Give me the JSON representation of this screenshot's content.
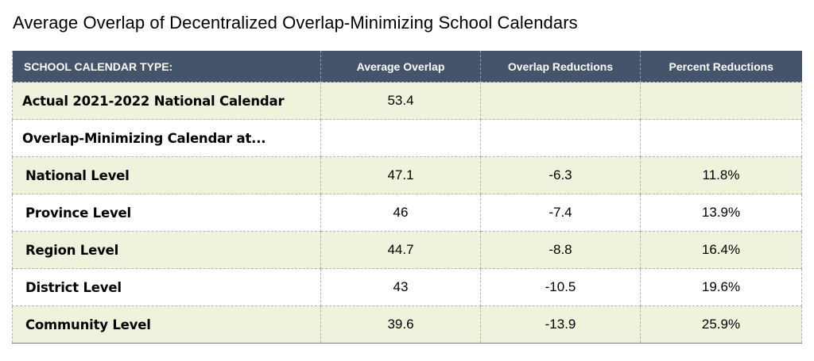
{
  "title": "Average Overlap of Decentralized Overlap-Minimizing School Calendars",
  "chart_data": {
    "type": "table",
    "title": "Average Overlap of Decentralized Overlap-Minimizing School Calendars",
    "columns": [
      "SCHOOL CALENDAR TYPE:",
      "Average Overlap",
      "Overlap Reductions",
      "Percent Reductions"
    ],
    "rows": [
      [
        "Actual 2021-2022 National Calendar",
        "53.4",
        "",
        ""
      ],
      [
        "Overlap-Minimizing Calendar at...",
        "",
        "",
        ""
      ],
      [
        "National Level",
        "47.1",
        "-6.3",
        "11.8%"
      ],
      [
        "Province Level",
        "46",
        "-7.4",
        "13.9%"
      ],
      [
        "Region Level",
        "44.7",
        "-8.8",
        "16.4%"
      ],
      [
        "District Level",
        "43",
        "-10.5",
        "19.6%"
      ],
      [
        "Community Level",
        "39.6",
        "-13.9",
        "25.9%"
      ]
    ],
    "header_color": "#44546a",
    "band_color": "#f0f3dc"
  }
}
